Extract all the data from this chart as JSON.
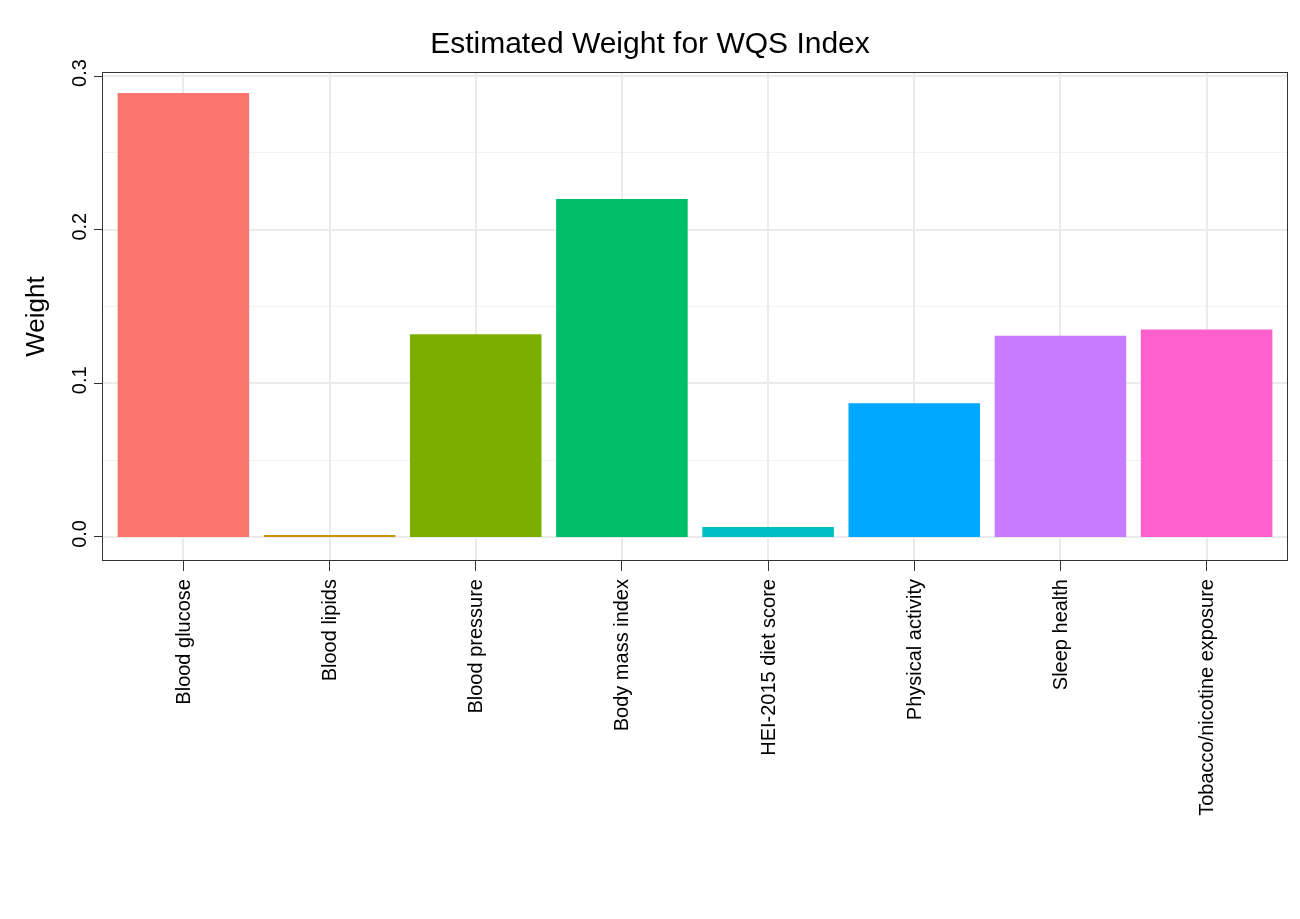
{
  "chart_data": {
    "type": "bar",
    "title": "Estimated Weight for WQS Index",
    "ylabel": "Weight",
    "categories": [
      "Blood glucose",
      "Blood lipids",
      "Blood pressure",
      "Body mass index",
      "HEI-2015 diet score",
      "Physical activity",
      "Sleep health",
      "Tobacco/nicotine exposure"
    ],
    "values": [
      0.289,
      0.001,
      0.132,
      0.22,
      0.0065,
      0.087,
      0.131,
      0.135
    ],
    "colors": [
      "#f8766d",
      "#cd9600",
      "#7cae00",
      "#00be67",
      "#00bfc4",
      "#00a9ff",
      "#c77cff",
      "#ff61cc"
    ],
    "ylim": [
      -0.015,
      0.302
    ],
    "yticks": [
      {
        "value": 0,
        "label": "0.0"
      },
      0.1,
      0.2,
      0.3
    ],
    "grid": true
  }
}
